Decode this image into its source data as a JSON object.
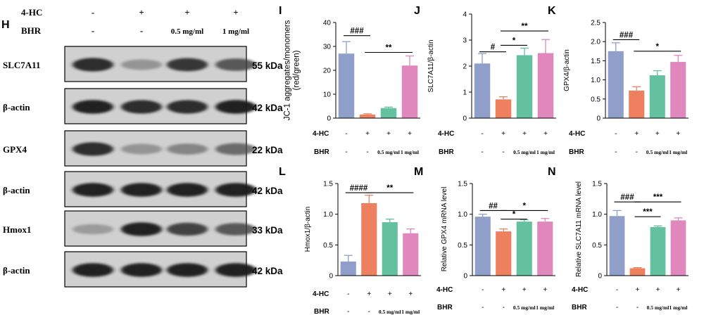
{
  "blot": {
    "panel_letter": "H",
    "rows": [
      {
        "label": "4-HC",
        "values": [
          "-",
          "+",
          "+",
          "+"
        ]
      },
      {
        "label": "BHR",
        "values": [
          "-",
          "-",
          "0.5 mg/ml",
          "1 mg/ml"
        ]
      }
    ],
    "bands": [
      {
        "protein": "SLC7A11",
        "kda": "55 kDa",
        "intensity": [
          0.9,
          0.35,
          0.85,
          0.7
        ]
      },
      {
        "protein": "β-actin",
        "kda": "42 kDa",
        "intensity": [
          0.95,
          0.9,
          0.9,
          0.95
        ]
      },
      {
        "protein": "GPX4",
        "kda": "22 kDa",
        "intensity": [
          0.9,
          0.35,
          0.45,
          0.6
        ]
      },
      {
        "protein": "β-actin",
        "kda": "42 kDa",
        "intensity": [
          0.95,
          0.95,
          0.95,
          0.95
        ]
      },
      {
        "protein": "Hmox1",
        "kda": "33 kDa",
        "intensity": [
          0.3,
          0.95,
          0.8,
          0.7
        ]
      },
      {
        "protein": "β-actin",
        "kda": "42 kDa",
        "intensity": [
          0.95,
          0.95,
          0.95,
          0.95
        ]
      }
    ]
  },
  "colors": [
    "#8f9fca",
    "#ee8060",
    "#63c19f",
    "#e088bd"
  ],
  "group_labels": {
    "hc_label": "4-HC",
    "bhr_label": "BHR",
    "hc": [
      "-",
      "+",
      "+",
      "+"
    ],
    "bhr": [
      "-",
      "-",
      "0.5 mg/ml",
      "1 mg/ml"
    ]
  },
  "chart_data": [
    {
      "panel": "I",
      "type": "bar",
      "ylabel": "JC-1 aggregates/monomers\n(red/green)",
      "ylim": [
        0,
        40
      ],
      "yticks": [
        0,
        10,
        20,
        30,
        40
      ],
      "values": [
        27,
        1.5,
        4.2,
        22
      ],
      "errors": [
        5,
        0.3,
        0.4,
        4
      ],
      "sig": [
        {
          "text": "###",
          "from": 0,
          "to": 1,
          "y": 34.5
        },
        {
          "text": "**",
          "from": 1,
          "to": 3,
          "y": 27.5
        }
      ]
    },
    {
      "panel": "J",
      "type": "bar",
      "ylabel": "SLC7A11/β-actin",
      "ylim": [
        0,
        4
      ],
      "yticks": [
        0,
        1,
        2,
        3,
        4
      ],
      "values": [
        2.1,
        0.72,
        2.42,
        2.5
      ],
      "errors": [
        0.38,
        0.1,
        0.27,
        0.52
      ],
      "sig": [
        {
          "text": "#",
          "from": 0,
          "to": 1,
          "y": 2.55
        },
        {
          "text": "*",
          "from": 1,
          "to": 2,
          "y": 2.8
        },
        {
          "text": "**",
          "from": 1,
          "to": 3,
          "y": 3.35
        }
      ]
    },
    {
      "panel": "K",
      "type": "bar",
      "ylabel": "GPX4/β-actin",
      "ylim": [
        0,
        2.5
      ],
      "yticks": [
        0,
        0.5,
        1.0,
        1.5,
        2.0,
        2.5
      ],
      "values": [
        1.75,
        0.72,
        1.12,
        1.47
      ],
      "errors": [
        0.22,
        0.1,
        0.12,
        0.17
      ],
      "sig": [
        {
          "text": "###",
          "from": 0,
          "to": 1,
          "y": 2.05
        },
        {
          "text": "*",
          "from": 1,
          "to": 3,
          "y": 1.75
        }
      ]
    },
    {
      "panel": "L",
      "type": "bar",
      "ylabel": "Hmox1/β-actin",
      "ylim": [
        0,
        1.5
      ],
      "yticks": [
        0,
        0.5,
        1.0,
        1.5
      ],
      "values": [
        0.23,
        1.18,
        0.87,
        0.69
      ],
      "errors": [
        0.1,
        0.13,
        0.05,
        0.07
      ],
      "sig": [
        {
          "text": "####",
          "from": 0,
          "to": 1,
          "y": 1.35
        },
        {
          "text": "**",
          "from": 1,
          "to": 3,
          "y": 1.35
        }
      ]
    },
    {
      "panel": "M",
      "type": "bar",
      "ylabel": "Relative GPX4 mRNA level",
      "ylim": [
        0,
        1.5
      ],
      "yticks": [
        0,
        0.5,
        1.0,
        1.5
      ],
      "values": [
        0.96,
        0.72,
        0.88,
        0.88
      ],
      "errors": [
        0.04,
        0.04,
        0.03,
        0.05
      ],
      "sig": [
        {
          "text": "##",
          "from": 0,
          "to": 1,
          "y": 1.06
        },
        {
          "text": "*",
          "from": 1,
          "to": 2,
          "y": 0.92
        },
        {
          "text": "*",
          "from": 1,
          "to": 3,
          "y": 1.06
        }
      ]
    },
    {
      "panel": "N",
      "type": "bar",
      "ylabel": "Relative SLC7A11 mRNA level",
      "ylim": [
        0,
        1.5
      ],
      "yticks": [
        0,
        0.5,
        1.0,
        1.5
      ],
      "values": [
        0.97,
        0.12,
        0.79,
        0.9
      ],
      "errors": [
        0.09,
        0.01,
        0.02,
        0.04
      ],
      "sig": [
        {
          "text": "###",
          "from": 0,
          "to": 1,
          "y": 1.2
        },
        {
          "text": "***",
          "from": 1,
          "to": 2,
          "y": 0.96
        },
        {
          "text": "***",
          "from": 1,
          "to": 3,
          "y": 1.2
        }
      ]
    }
  ]
}
